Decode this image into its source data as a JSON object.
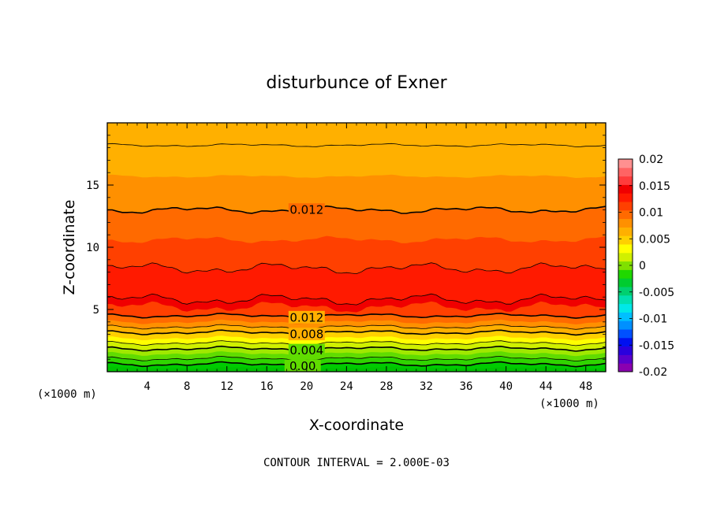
{
  "chart_data": {
    "type": "heatmap",
    "title": "disturbunce of Exner",
    "xlabel": "X-coordinate",
    "ylabel": "Z-coordinate",
    "x_unit_left": "(×1000 m)",
    "x_unit_right": "(×1000 m)",
    "xlim": [
      0,
      50
    ],
    "ylim": [
      0,
      20
    ],
    "x_ticks": [
      4,
      8,
      12,
      16,
      20,
      24,
      28,
      32,
      36,
      40,
      44,
      48
    ],
    "y_ticks": [
      5,
      10,
      15
    ],
    "footnote": "CONTOUR INTERVAL = 2.000E-03",
    "colorbar": {
      "ticks": [
        "0.02",
        "0.015",
        "0.01",
        "0.005",
        "0",
        "-0.005",
        "-0.01",
        "-0.015",
        "-0.02"
      ],
      "range": [
        -0.02,
        0.02
      ],
      "colors": [
        "#8a00b0",
        "#5a00cc",
        "#2a00dd",
        "#0010f0",
        "#0050ff",
        "#0090ff",
        "#00c0ff",
        "#00e8e8",
        "#00e0b0",
        "#00d070",
        "#00cc30",
        "#20d800",
        "#80e000",
        "#d0f000",
        "#ffff00",
        "#ffd000",
        "#ffb000",
        "#ff9000",
        "#ff6a00",
        "#ff4000",
        "#ff1a00",
        "#f00000",
        "#ff3c3c",
        "#ff6464",
        "#ff9090"
      ]
    },
    "bands": [
      {
        "z": 19.6,
        "value": 0.0106,
        "color": "#ffb000"
      },
      {
        "z": 15.7,
        "value": 0.0114,
        "color": "#ff9000"
      },
      {
        "z": 13.0,
        "value": 0.0122,
        "color": "#ff6a00"
      },
      {
        "z": 10.6,
        "value": 0.013,
        "color": "#ff4000"
      },
      {
        "z": 8.3,
        "value": 0.014,
        "color": "#ff1a00"
      },
      {
        "z": 5.8,
        "value": 0.0148,
        "color": "#f00000"
      },
      {
        "z": 5.2,
        "value": 0.013,
        "color": "#ff4000"
      },
      {
        "z": 4.5,
        "value": 0.012,
        "color": "#ff6a00"
      },
      {
        "z": 4.0,
        "value": 0.011,
        "color": "#ff9000"
      },
      {
        "z": 3.6,
        "value": 0.0096,
        "color": "#ffb000"
      },
      {
        "z": 3.15,
        "value": 0.0084,
        "color": "#ffd000"
      },
      {
        "z": 2.7,
        "value": 0.007,
        "color": "#ffff00"
      },
      {
        "z": 2.3,
        "value": 0.0058,
        "color": "#d0f000"
      },
      {
        "z": 1.85,
        "value": 0.0044,
        "color": "#a0e800"
      },
      {
        "z": 1.45,
        "value": 0.0032,
        "color": "#60dc00"
      },
      {
        "z": 1.05,
        "value": 0.002,
        "color": "#30d400"
      },
      {
        "z": 0.6,
        "value": 0.0008,
        "color": "#00cc00"
      }
    ],
    "contours": [
      {
        "value": 0.012,
        "z": 18.2,
        "label": ""
      },
      {
        "value": 0.012,
        "z": 13.0,
        "label": "0.012",
        "label_x": 20.0
      },
      {
        "value": 0.014,
        "z": 8.3,
        "label": ""
      },
      {
        "value": 0.014,
        "z": 5.8,
        "label": ""
      },
      {
        "value": 0.012,
        "z": 4.5,
        "label": "0.012",
        "label_x": 20.0
      },
      {
        "value": 0.01,
        "z": 3.6,
        "label": ""
      },
      {
        "value": 0.008,
        "z": 3.15,
        "label": "0.008",
        "label_x": 20.0
      },
      {
        "value": 0.006,
        "z": 2.3,
        "label": ""
      },
      {
        "value": 0.004,
        "z": 1.85,
        "label": "0.004",
        "label_x": 20.0
      },
      {
        "value": 0.002,
        "z": 1.05,
        "label": ""
      },
      {
        "value": 0.0,
        "z": 0.6,
        "label": "0.00",
        "label_x": 19.6
      }
    ]
  }
}
